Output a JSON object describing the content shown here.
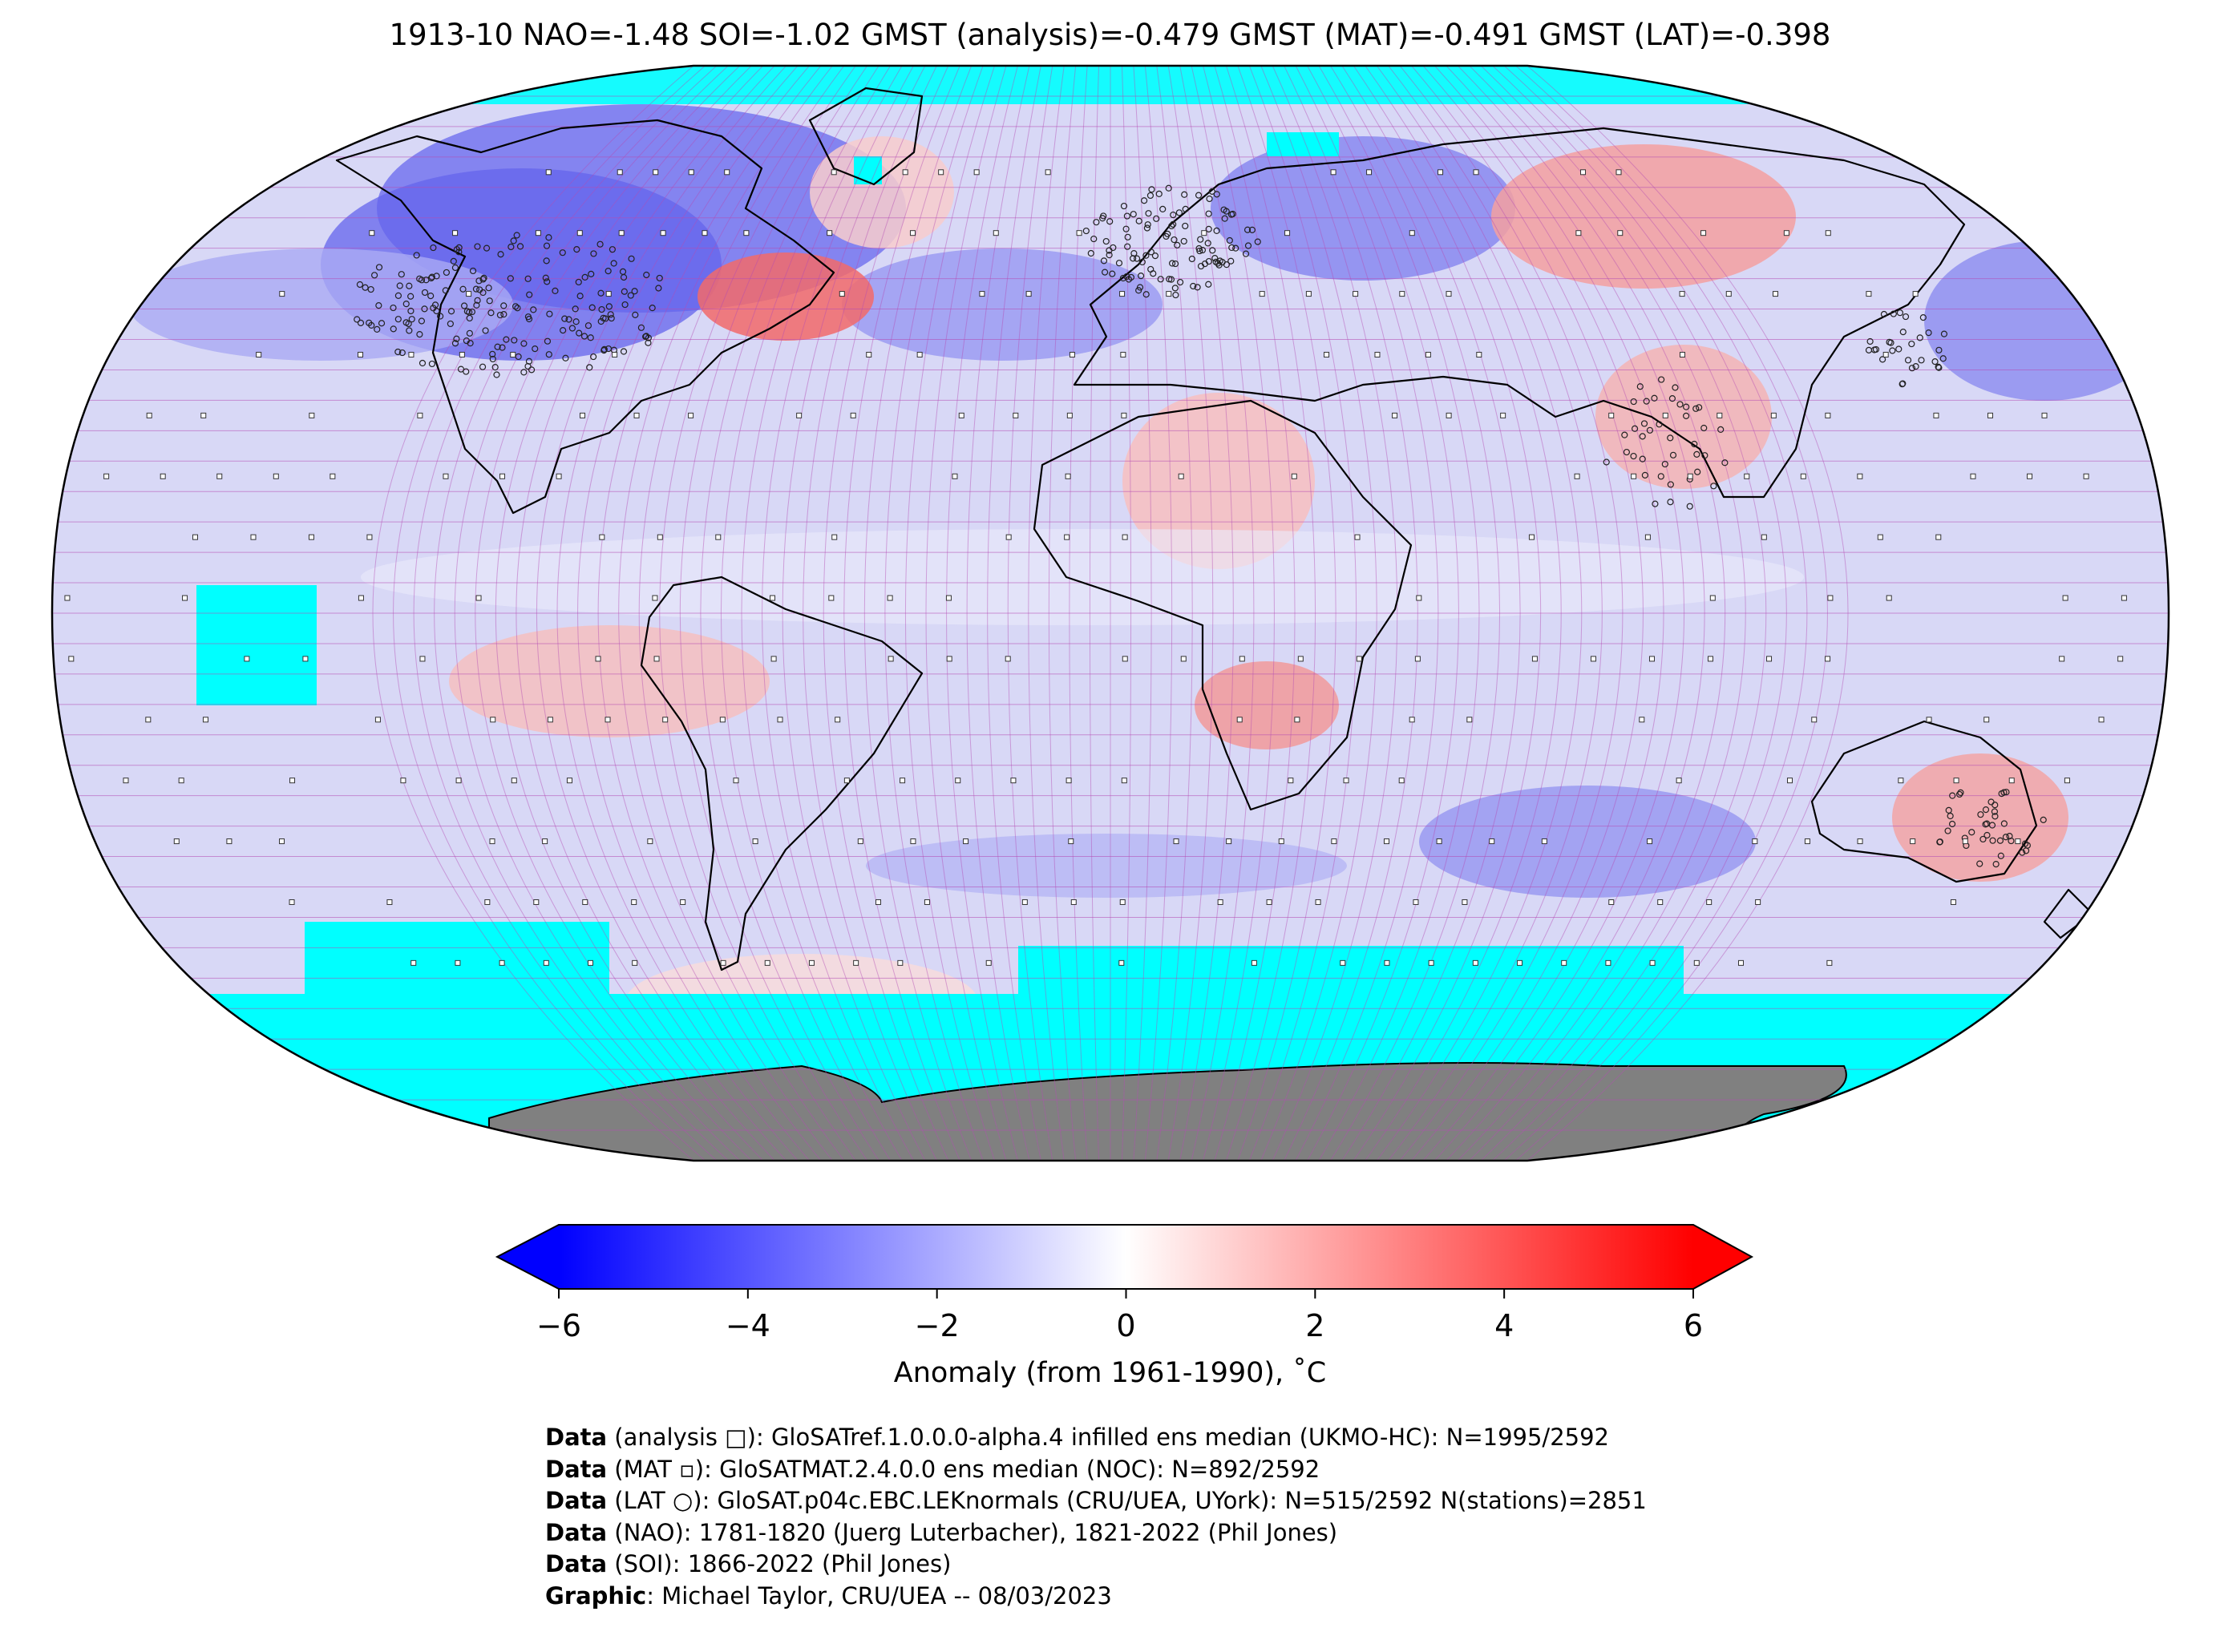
{
  "title": "1913-10 NAO=-1.48 SOI=-1.02 GMST (analysis)=-0.479 GMST (MAT)=-0.491 GMST (LAT)=-0.398",
  "map": {
    "projection": "Robinson (global)",
    "grid": "5x5 degree cells",
    "colors": {
      "no_data": "#00ffff",
      "land_antarctica": "#808080",
      "grid_lines": "#b44cb4",
      "coast": "#000000"
    }
  },
  "colorbar": {
    "min": -6,
    "max": 6,
    "ticks": [
      "−6",
      "−4",
      "−2",
      "0",
      "2",
      "4",
      "6"
    ],
    "label": "Anomaly (from 1961-1990), ˚C",
    "colormap": "bwr",
    "color_low": "#0000ff",
    "color_mid": "#ffffff",
    "color_high": "#ff0000"
  },
  "credits": [
    {
      "bold": "Data",
      "text": " (analysis □): GloSATref.1.0.0.0-alpha.4 infilled ens median (UKMO-HC): N=1995/2592"
    },
    {
      "bold": "Data",
      "text": " (MAT ▫): GloSATMAT.2.4.0.0 ens median (NOC): N=892/2592"
    },
    {
      "bold": "Data",
      "text": " (LAT ○): GloSAT.p04c.EBC.LEKnormals (CRU/UEA, UYork): N=515/2592 N(stations)=2851"
    },
    {
      "bold": "Data",
      "text": " (NAO): 1781-1820 (Juerg Luterbacher), 1821-2022 (Phil Jones)"
    },
    {
      "bold": "Data",
      "text": " (SOI): 1866-2022 (Phil Jones)"
    },
    {
      "bold": "Graphic",
      "text": ": Michael Taylor, CRU/UEA -- 08/03/2023"
    }
  ]
}
